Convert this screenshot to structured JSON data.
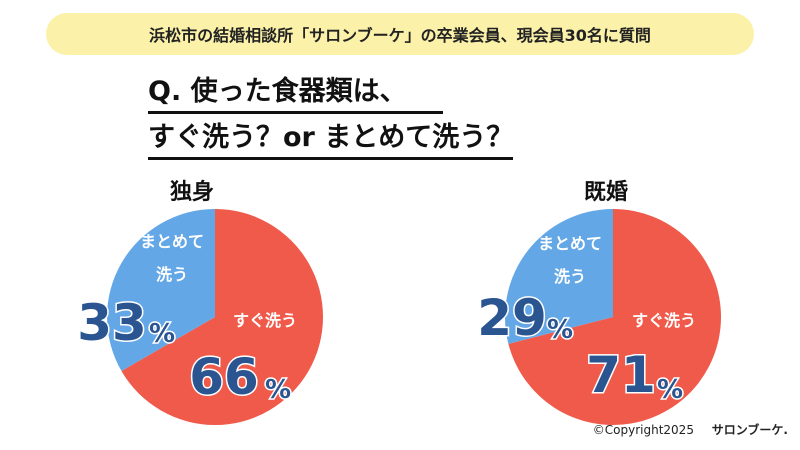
{
  "banner": "浜松市の結婚相談所「サロンブーケ」の卒業会員、現会員30名に質問",
  "question": {
    "line1": "Q. 使った食器類は、",
    "line2": "すぐ洗う？or まとめて洗う？"
  },
  "colors": {
    "red": "#f05a4a",
    "blue": "#63a7e6",
    "number": "#2a5590",
    "banner_bg": "#fbf1a9"
  },
  "chart_data": [
    {
      "type": "pie",
      "title": "独身",
      "slices": [
        {
          "label": "すぐ洗う",
          "value": 66,
          "display": "66",
          "color": "#f05a4a"
        },
        {
          "label": "まとめて洗う",
          "value": 33,
          "display": "33",
          "color": "#63a7e6"
        }
      ]
    },
    {
      "type": "pie",
      "title": "既婚",
      "slices": [
        {
          "label": "すぐ洗う",
          "value": 71,
          "display": "71",
          "color": "#f05a4a"
        },
        {
          "label": "まとめて洗う",
          "value": 29,
          "display": "29",
          "color": "#63a7e6"
        }
      ]
    }
  ],
  "footer": {
    "copyright": "©Copyright2025",
    "brand": "サロンブーケ."
  }
}
